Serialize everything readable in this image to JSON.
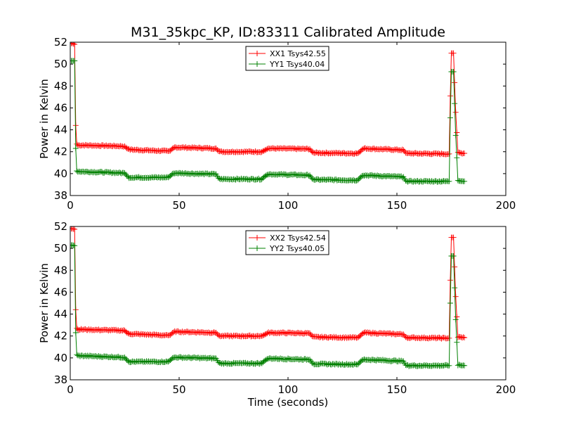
{
  "figure_title": "M31_35kpc_KP, ID:83311 Calibrated Amplitude",
  "chart_data": [
    {
      "type": "line",
      "title": "M31_35kpc_KP, ID:83311 Calibrated Amplitude",
      "xlabel": "",
      "ylabel": "Power in Kelvin",
      "xlim": [
        0,
        200
      ],
      "ylim": [
        38,
        52
      ],
      "xticks": [
        0,
        50,
        100,
        150,
        200
      ],
      "yticks": [
        38,
        40,
        42,
        44,
        46,
        48,
        50,
        52
      ],
      "grid": false,
      "legend_position": "top-center",
      "series": [
        {
          "name": "XX1 Tsys42.55",
          "color": "#ff0000",
          "x": [
            0,
            1,
            2,
            2.5,
            3,
            3.5,
            25,
            26,
            27,
            45,
            46,
            47,
            48,
            67,
            68,
            69,
            88,
            89,
            90,
            91,
            110,
            111,
            112,
            132,
            133,
            134,
            135,
            153,
            154,
            155,
            174,
            174.5,
            175,
            176,
            177,
            178,
            181
          ],
          "y": [
            51.9,
            51.9,
            51.8,
            44.4,
            42.7,
            42.6,
            42.5,
            42.3,
            42.2,
            42.05,
            42.1,
            42.3,
            42.4,
            42.3,
            42.05,
            42.0,
            42.0,
            42.1,
            42.2,
            42.3,
            42.25,
            42.0,
            41.9,
            41.85,
            42.0,
            42.2,
            42.3,
            42.15,
            41.9,
            41.85,
            41.8,
            47.1,
            51.0,
            51.0,
            45.6,
            41.9,
            41.85
          ]
        },
        {
          "name": "YY1 Tsys40.04",
          "color": "#008000",
          "x": [
            0,
            1,
            2,
            2.5,
            3,
            3.5,
            25,
            26,
            27,
            45,
            46,
            47,
            48,
            67,
            68,
            69,
            88,
            89,
            90,
            91,
            110,
            111,
            112,
            132,
            133,
            134,
            135,
            153,
            154,
            155,
            174,
            174.5,
            175,
            176,
            177,
            178,
            181
          ],
          "y": [
            50.3,
            50.3,
            50.3,
            42.3,
            40.25,
            40.2,
            40.05,
            39.8,
            39.65,
            39.65,
            39.8,
            40.0,
            40.05,
            39.95,
            39.6,
            39.5,
            39.5,
            39.7,
            39.85,
            39.95,
            39.85,
            39.55,
            39.45,
            39.4,
            39.6,
            39.8,
            39.85,
            39.7,
            39.35,
            39.3,
            39.3,
            45.1,
            49.3,
            49.3,
            43.5,
            39.4,
            39.3
          ]
        }
      ]
    },
    {
      "type": "line",
      "title": "",
      "xlabel": "Time (seconds)",
      "ylabel": "Power in Kelvin",
      "xlim": [
        0,
        200
      ],
      "ylim": [
        38,
        52
      ],
      "xticks": [
        0,
        50,
        100,
        150,
        200
      ],
      "yticks": [
        38,
        40,
        42,
        44,
        46,
        48,
        50,
        52
      ],
      "grid": false,
      "legend_position": "top-center",
      "series": [
        {
          "name": "XX2 Tsys42.54",
          "color": "#ff0000",
          "x": [
            0,
            1,
            2,
            2.5,
            3,
            3.5,
            25,
            26,
            27,
            45,
            46,
            47,
            48,
            67,
            68,
            69,
            88,
            89,
            90,
            91,
            110,
            111,
            112,
            132,
            133,
            134,
            135,
            153,
            154,
            155,
            174,
            174.5,
            175,
            176,
            177,
            178,
            181
          ],
          "y": [
            51.8,
            51.8,
            51.75,
            44.4,
            42.7,
            42.6,
            42.5,
            42.3,
            42.2,
            42.05,
            42.1,
            42.3,
            42.4,
            42.3,
            42.05,
            42.0,
            42.0,
            42.1,
            42.2,
            42.3,
            42.25,
            42.0,
            41.9,
            41.85,
            42.0,
            42.2,
            42.3,
            42.15,
            41.9,
            41.85,
            41.8,
            47.1,
            51.0,
            51.0,
            45.6,
            41.9,
            41.85
          ]
        },
        {
          "name": "YY2 Tsys40.05",
          "color": "#008000",
          "x": [
            0,
            1,
            2,
            2.5,
            3,
            3.5,
            25,
            26,
            27,
            45,
            46,
            47,
            48,
            67,
            68,
            69,
            88,
            89,
            90,
            91,
            110,
            111,
            112,
            132,
            133,
            134,
            135,
            153,
            154,
            155,
            174,
            174.5,
            175,
            176,
            177,
            178,
            181
          ],
          "y": [
            50.3,
            50.3,
            50.25,
            42.3,
            40.3,
            40.2,
            40.05,
            39.8,
            39.65,
            39.65,
            39.8,
            40.0,
            40.05,
            39.95,
            39.6,
            39.5,
            39.5,
            39.7,
            39.85,
            39.95,
            39.85,
            39.55,
            39.45,
            39.4,
            39.6,
            39.8,
            39.85,
            39.7,
            39.35,
            39.3,
            39.3,
            45.0,
            49.3,
            49.3,
            43.5,
            39.35,
            39.3
          ]
        }
      ]
    }
  ]
}
